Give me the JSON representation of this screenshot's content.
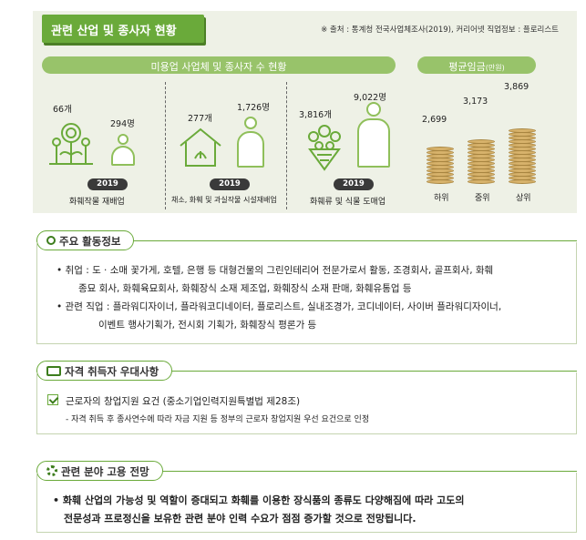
{
  "industry": {
    "title": "관련 산업 및 종사자 현황",
    "source": "※ 출처 : 통계청 전국사업체조사(2019), 커리어넷 직업정보 : 플로리스트",
    "business_header": "미용업 사업체 및 종사자 수 현황",
    "wage_header_main": "평균임금",
    "wage_header_unit": "(만원)",
    "groups": [
      {
        "businesses": "66개",
        "workers": "294명",
        "year": "2019",
        "caption": "화훼작물 재배업"
      },
      {
        "businesses": "277개",
        "workers": "1,726명",
        "year": "2019",
        "caption": "채소, 화훼 및 과실작물 시설재배업"
      },
      {
        "businesses": "3,816개",
        "workers": "9,022명",
        "year": "2019",
        "caption": "화훼류 및 식물 도매업"
      }
    ],
    "wages": [
      {
        "label": "하위",
        "value": "2,699",
        "amount": 2699
      },
      {
        "label": "중위",
        "value": "3,173",
        "amount": 3173
      },
      {
        "label": "상위",
        "value": "3,869",
        "amount": 3869
      }
    ]
  },
  "activities": {
    "title": "주요 활동정보",
    "lines": [
      "• 취업 : 도 · 소매 꽃가게, 호텔, 은행 등 대형건물의 그린인테리어 전문가로서 활동, 조경회사, 골프회사, 화훼",
      "종묘 회사, 화훼육묘회사, 화훼장식 소재 제조업, 화훼장식 소재 판매, 화훼유통업 등",
      "• 관련 직업 : 플라워디자이너, 플라워코디네이터, 플로리스트, 실내조경가, 코디네이터, 사이버 플라워디자이너,",
      "이벤트 행사기획가, 전시회 기획가, 화훼장식 평론가 등"
    ]
  },
  "preference": {
    "title": "자격 취득자 우대사항",
    "item": "근로자의 창업지원 요건 (중소기업인력지원특별법 제28조)",
    "detail": "- 자격 취득 후 종사연수에 따라 자금 지원 등 정부의 근로자 창업지원 우선 요건으로 인정"
  },
  "outlook": {
    "title": "관련 분야 고용 전망",
    "lines": [
      "• 화훼 산업의 가능성 및 역할이 증대되고 화훼를 이용한 장식품의 종류도 다양해짐에 따라 고도의",
      "전문성과 프로정신을 보유한 관련 분야 인력 수요가 점점 증가할 것으로 전망됩니다."
    ]
  }
}
